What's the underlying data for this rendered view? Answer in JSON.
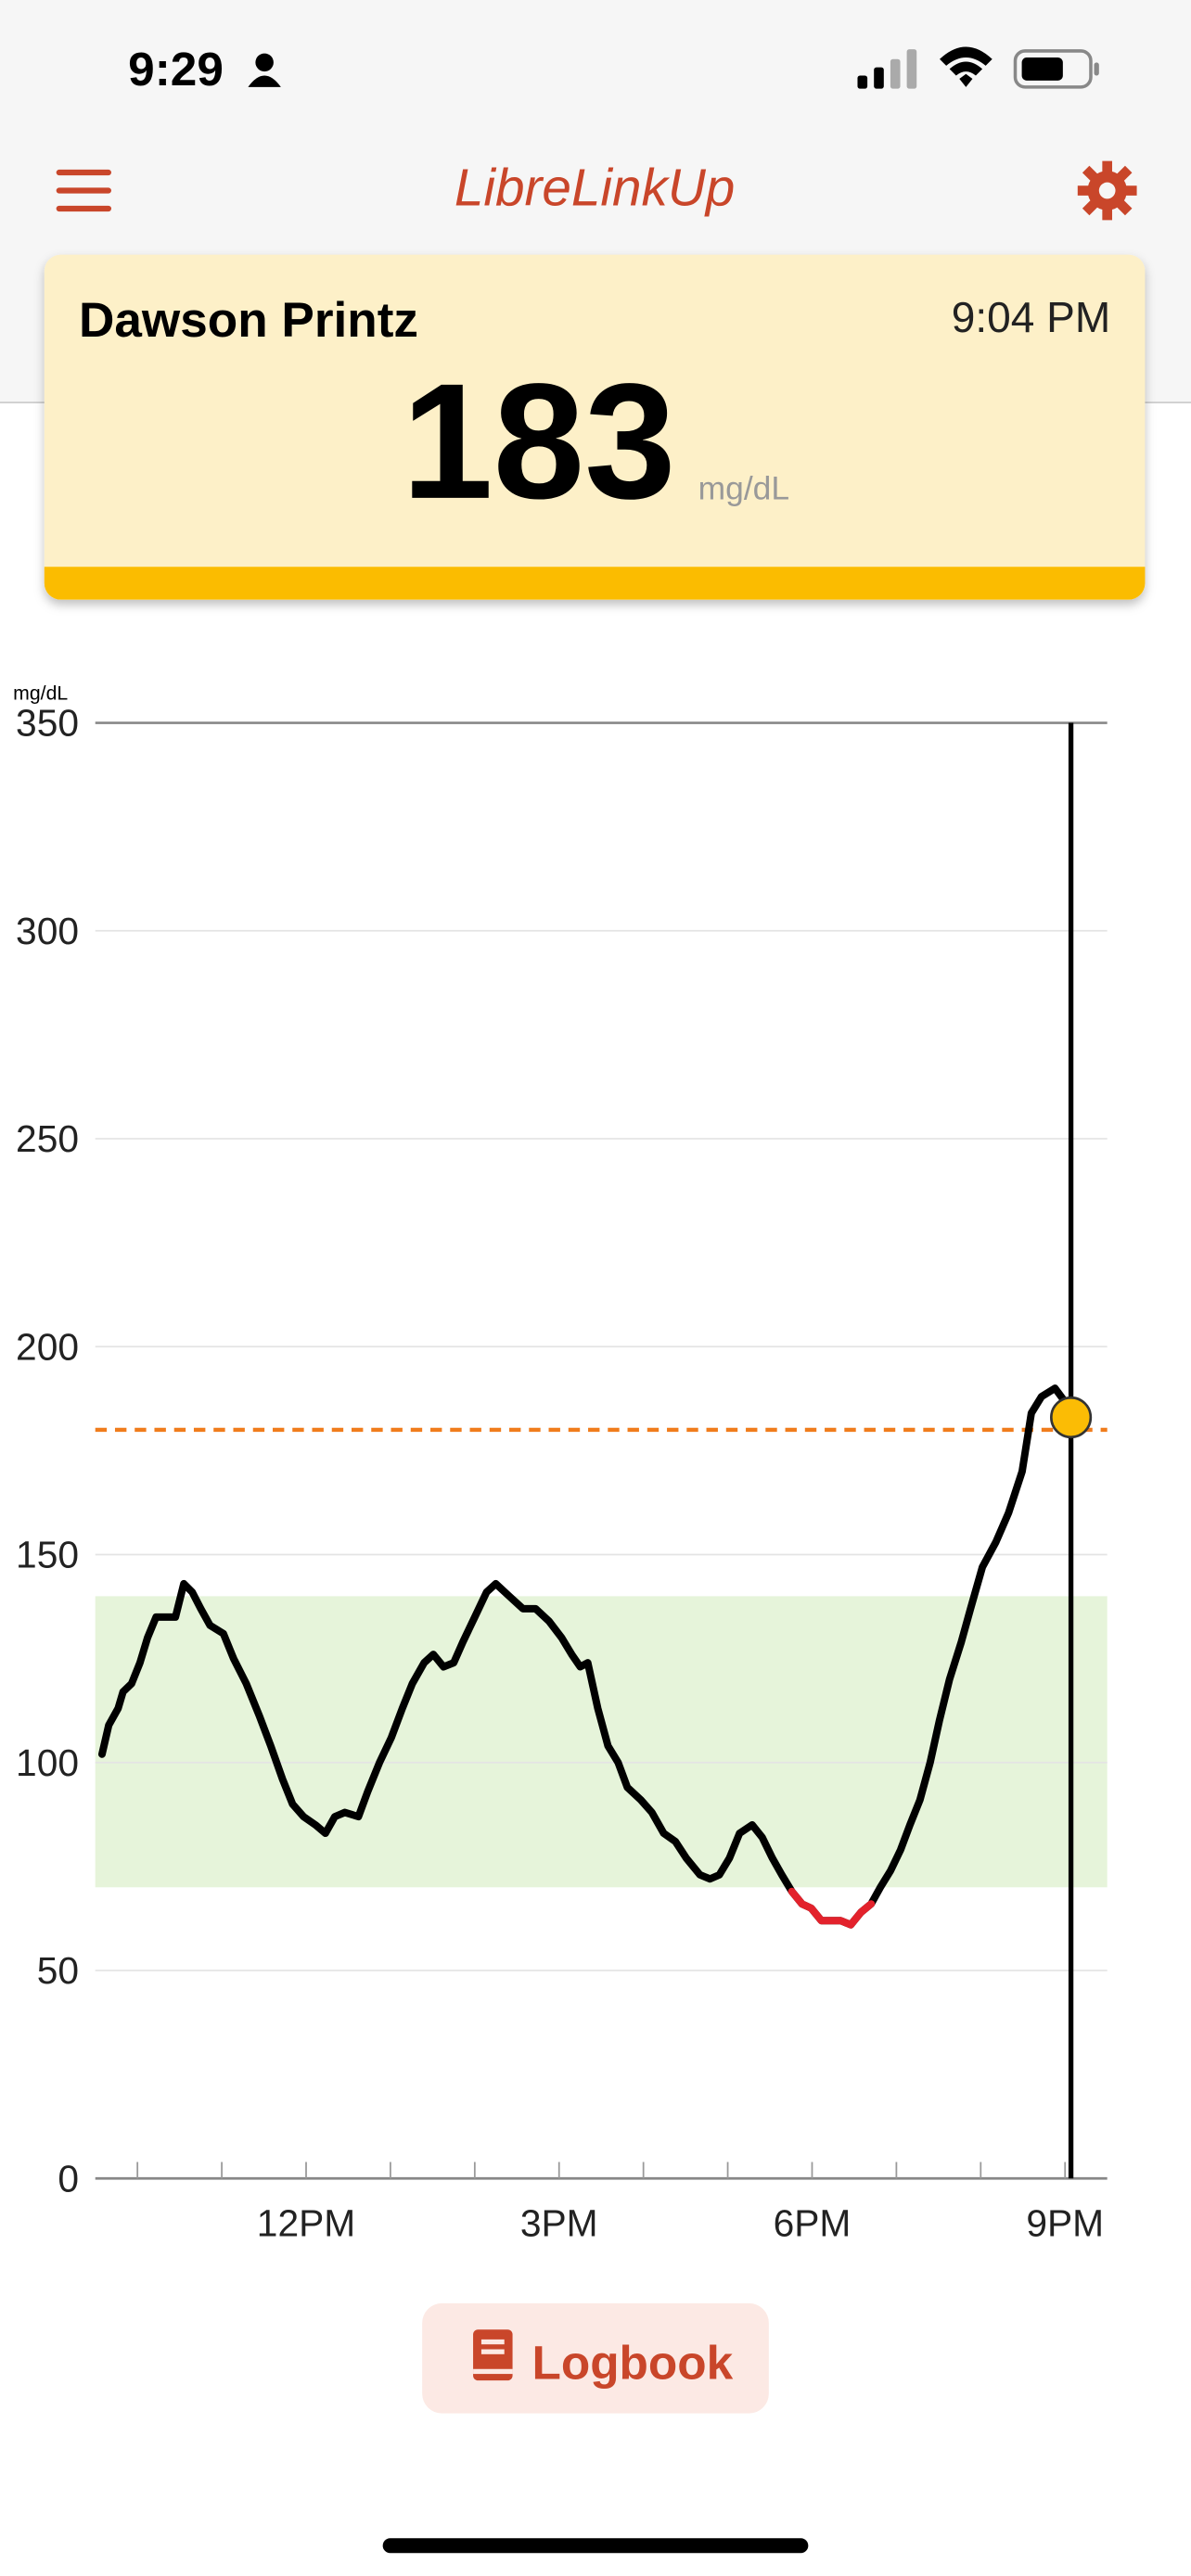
{
  "status_bar": {
    "time": "9:29"
  },
  "header": {
    "title": "LibreLinkUp"
  },
  "card": {
    "name": "Dawson Printz",
    "time": "9:04 PM",
    "value": 183,
    "unit": "mg/dL"
  },
  "chart_data": {
    "type": "line",
    "y_label": "mg/dL",
    "x": [
      9.58,
      9.66,
      9.77,
      9.83,
      9.93,
      10.03,
      10.12,
      10.22,
      10.32,
      10.45,
      10.55,
      10.65,
      10.75,
      10.86,
      11.02,
      11.14,
      11.29,
      11.45,
      11.58,
      11.72,
      11.84,
      11.97,
      12.11,
      12.23,
      12.34,
      12.46,
      12.62,
      12.73,
      12.87,
      13.01,
      13.14,
      13.26,
      13.4,
      13.51,
      13.63,
      13.75,
      13.86,
      14.0,
      14.14,
      14.25,
      14.41,
      14.57,
      14.72,
      14.88,
      15.03,
      15.15,
      15.25,
      15.34,
      15.46,
      15.58,
      15.7,
      15.81,
      15.97,
      16.1,
      16.24,
      16.38,
      16.51,
      16.67,
      16.79,
      16.9,
      17.02,
      17.14,
      17.29,
      17.41,
      17.53,
      17.64,
      17.76,
      17.88,
      17.99,
      18.11,
      18.23,
      18.34,
      18.46,
      18.58,
      18.7,
      18.81,
      18.93,
      19.05,
      19.16,
      19.28,
      19.4,
      19.51,
      19.63,
      19.77,
      19.88,
      20.02,
      20.18,
      20.33,
      20.49,
      20.6,
      20.72,
      20.88,
      20.99
    ],
    "values": [
      102,
      109,
      113,
      117,
      119,
      124,
      130,
      135,
      135,
      135,
      143,
      141,
      137,
      133,
      131,
      125,
      119,
      111,
      104,
      96,
      90,
      87,
      85,
      83,
      87,
      88,
      87,
      93,
      100,
      106,
      113,
      119,
      124,
      126,
      123,
      124,
      129,
      135,
      141,
      143,
      140,
      137,
      137,
      134,
      130,
      126,
      123,
      124,
      113,
      104,
      100,
      94,
      91,
      88,
      83,
      81,
      77,
      73,
      72,
      73,
      77,
      83,
      85,
      82,
      77,
      73,
      69,
      66,
      65,
      62,
      62,
      62,
      61,
      64,
      66,
      70,
      74,
      79,
      85,
      91,
      100,
      110,
      120,
      129,
      137,
      147,
      153,
      160,
      170,
      184,
      188,
      190,
      187
    ],
    "color": "#000000",
    "low_color": "#e3222c",
    "xlim": [
      9.5,
      21.5
    ],
    "xticks": [
      {
        "value": 12,
        "label": "12PM"
      },
      {
        "value": 15,
        "label": "3PM"
      },
      {
        "value": 18,
        "label": "6PM"
      },
      {
        "value": 21,
        "label": "9PM"
      }
    ],
    "xminor": [
      10,
      11,
      13,
      14,
      16,
      17,
      19,
      20
    ],
    "ylim": [
      0,
      350
    ],
    "yticks": [
      0,
      50,
      100,
      150,
      200,
      250,
      300,
      350
    ],
    "grid": true,
    "target_range": [
      70,
      140
    ],
    "target_color": "#e6f4da",
    "high_threshold": 180,
    "high_color": "#f07c1c",
    "current": {
      "x": 21.07,
      "value": 183,
      "color": "#fbbc05"
    }
  },
  "button": {
    "label": "Logbook"
  }
}
